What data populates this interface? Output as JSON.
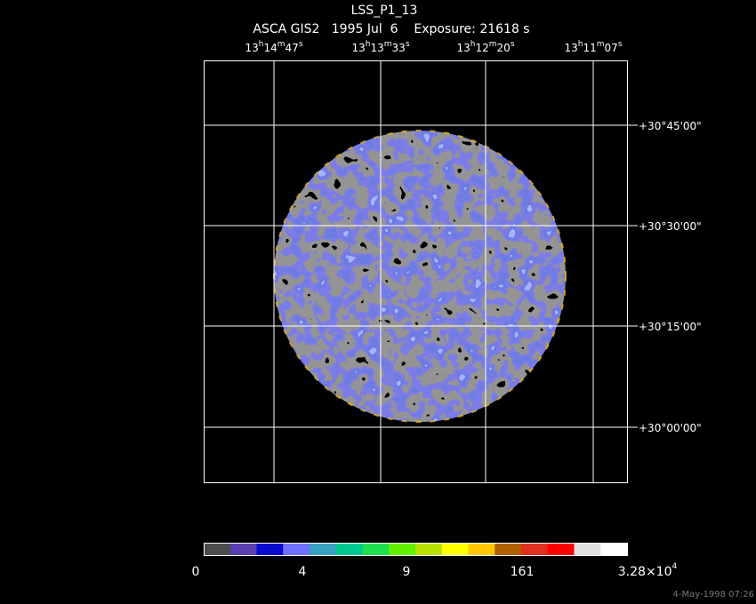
{
  "header": {
    "title": "LSS_P1_13",
    "subtitle": "ASCA GIS2   1995 Jul  6    Exposure: 21618 s"
  },
  "ra_labels": [
    [
      "13",
      "h",
      "14",
      "m",
      "47",
      "s"
    ],
    [
      "13",
      "h",
      "13",
      "m",
      "33",
      "s"
    ],
    [
      "13",
      "h",
      "12",
      "m",
      "20",
      "s"
    ],
    [
      "13",
      "h",
      "11",
      "m",
      "07",
      "s"
    ]
  ],
  "dec_labels": [
    "+30°45'00\"",
    "+30°30'00\"",
    "+30°15'00\"",
    "+30°00'00\""
  ],
  "colorbar": {
    "colors": [
      "#4d4d4d",
      "#5a3fb0",
      "#0a0ad0",
      "#7070ff",
      "#3aa0c0",
      "#00c890",
      "#20e050",
      "#60f000",
      "#b8e000",
      "#ffff00",
      "#ffc800",
      "#b06000",
      "#e03020",
      "#ff0000",
      "#e0e0e0",
      "#ffffff"
    ],
    "labels": [
      {
        "text": "0"
      },
      {
        "text": "4"
      },
      {
        "text": "9"
      },
      {
        "text": "161"
      },
      {
        "text": "3.28×10",
        "exponent": "4"
      }
    ]
  },
  "timestamp": "4-May-1998 07:26"
}
